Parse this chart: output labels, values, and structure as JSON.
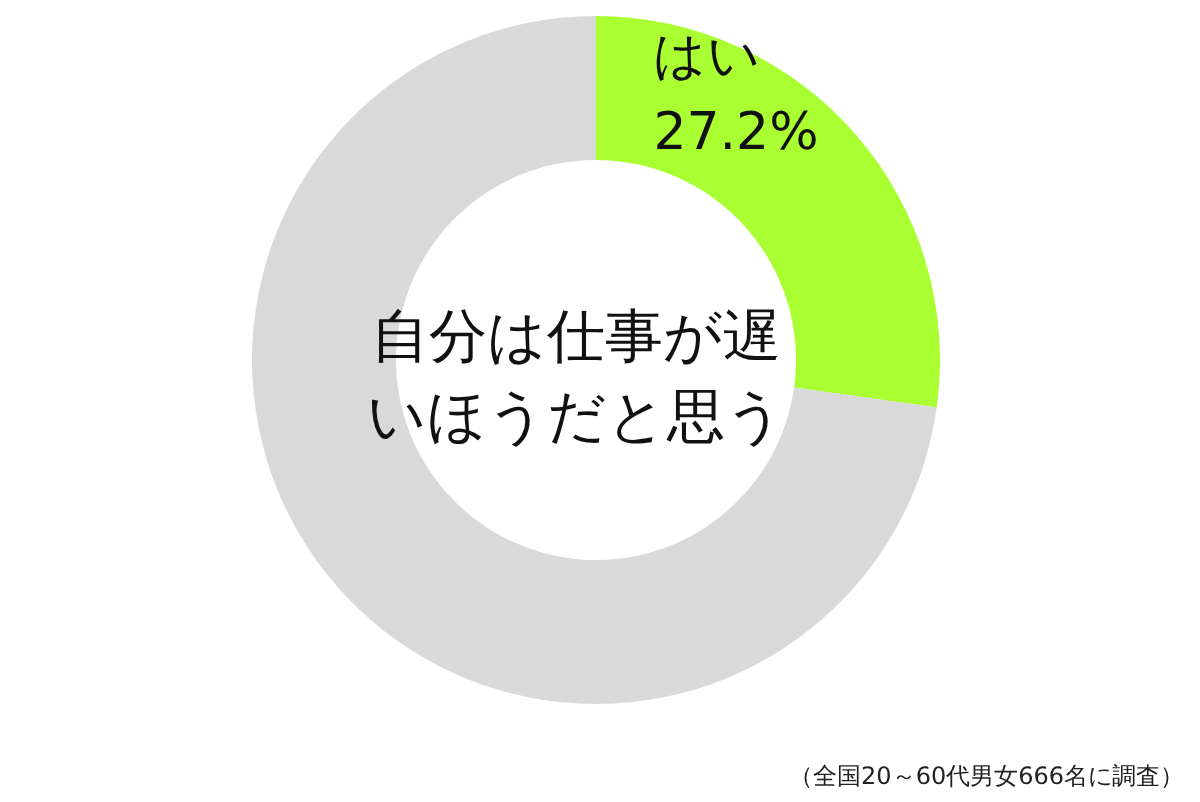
{
  "chart_data": {
    "type": "donut",
    "title": "自分は仕事が遅いほうだと思う",
    "categories": [
      "はい",
      null
    ],
    "values": [
      27.2,
      72.8
    ],
    "colors": [
      "#aaff33",
      "#d9d9d9"
    ],
    "value_labels": [
      "27.2%",
      null
    ],
    "annotations": [
      "（全国20～60代男女666名に調査）"
    ]
  }
}
